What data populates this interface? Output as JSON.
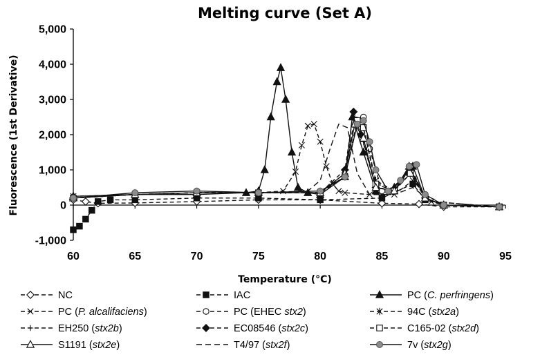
{
  "chart_data": {
    "type": "line",
    "title": "Melting curve (Set A)",
    "xlabel": "Temperature (°C)",
    "ylabel": "Fluorescence (1st Derivative)",
    "xlim": [
      60,
      95
    ],
    "ylim": [
      -1000,
      5000
    ],
    "xticks": [
      "60",
      "65",
      "70",
      "75",
      "80",
      "85",
      "90",
      "95"
    ],
    "yticks": [
      "-1,000",
      "0",
      "1,000",
      "2,000",
      "3,000",
      "4,000",
      "5,000"
    ],
    "grid": false,
    "legend_position": "bottom",
    "series": [
      {
        "name": "NC",
        "label": "NC",
        "marker": "diamond-open",
        "dash": "6 4",
        "x": [
          60,
          61,
          62,
          65,
          70,
          75,
          80,
          85,
          88,
          90,
          94.5
        ],
        "y": [
          150,
          100,
          50,
          60,
          100,
          150,
          150,
          50,
          30,
          -50,
          -50
        ]
      },
      {
        "name": "IAC",
        "label": "IAC",
        "marker": "square-filled",
        "dash": "6 4",
        "x": [
          60,
          60.5,
          61,
          61.5,
          62,
          63,
          65,
          70,
          75,
          80,
          85,
          87.5,
          88.5,
          90,
          94.5
        ],
        "y": [
          -700,
          -600,
          -400,
          -150,
          100,
          150,
          150,
          200,
          200,
          150,
          200,
          600,
          150,
          0,
          -50
        ]
      },
      {
        "name": "PC (C. perfringens)",
        "label": "PC (",
        "label_italic": "C. perfringens",
        "label_suffix": ")",
        "marker": "triangle-filled",
        "dash": "",
        "x": [
          60,
          65,
          70,
          74,
          75,
          75.5,
          76,
          76.5,
          76.8,
          77.2,
          77.7,
          78.2,
          79,
          80,
          82,
          82.6,
          83.5,
          84.5,
          86,
          87.5,
          88.5,
          90,
          94.5
        ],
        "y": [
          250,
          300,
          300,
          350,
          400,
          1000,
          2500,
          3500,
          3900,
          3000,
          1500,
          500,
          350,
          300,
          800,
          2500,
          1500,
          400,
          500,
          1100,
          200,
          0,
          -50
        ]
      },
      {
        "name": "PC (P. alcalifaciens)",
        "label": "PC (",
        "label_italic": "P. alcalifaciens",
        "label_suffix": ")",
        "marker": "x",
        "dash": "6 4",
        "x": [
          60,
          65,
          70,
          75,
          77,
          78,
          78.5,
          79,
          79.5,
          80,
          80.5,
          81,
          81.5,
          82,
          84,
          86,
          87.5,
          89,
          94.5
        ],
        "y": [
          250,
          300,
          350,
          350,
          400,
          950,
          1700,
          2250,
          2300,
          1800,
          1100,
          600,
          400,
          350,
          300,
          300,
          700,
          100,
          -50
        ]
      },
      {
        "name": "PC (EHEC stx2)",
        "label": "PC (EHEC ",
        "label_italic": "stx2",
        "label_suffix": ")",
        "marker": "circle-open",
        "dash": "6 4",
        "x": [
          60,
          65,
          70,
          75,
          80,
          82,
          83,
          83.5,
          84,
          85,
          86,
          87.3,
          88.5,
          90,
          94.5
        ],
        "y": [
          200,
          300,
          350,
          350,
          350,
          800,
          2400,
          2500,
          1600,
          400,
          400,
          1100,
          200,
          0,
          -50
        ]
      },
      {
        "name": "94C (stx2a)",
        "label": "94C (",
        "label_italic": "stx2a",
        "label_suffix": ")",
        "marker": "star",
        "dash": "6 4",
        "x": [
          60,
          65,
          70,
          75,
          80,
          82,
          83,
          83.5,
          84.5,
          86,
          87.3,
          88.5,
          90,
          94.5
        ],
        "y": [
          200,
          300,
          350,
          350,
          350,
          800,
          2300,
          2200,
          700,
          400,
          900,
          200,
          0,
          -50
        ]
      },
      {
        "name": "EH250 (stx2b)",
        "label": "EH250 (",
        "label_italic": "stx2b",
        "label_suffix": ")",
        "marker": "plus",
        "dash": "6 4",
        "x": [
          60,
          65,
          70,
          75,
          80,
          82,
          82.8,
          83.5,
          84.5,
          86,
          87.2,
          88.5,
          90,
          94.5
        ],
        "y": [
          200,
          300,
          350,
          350,
          350,
          900,
          2500,
          1800,
          500,
          400,
          1000,
          200,
          0,
          -50
        ]
      },
      {
        "name": "EC08546 (stx2c)",
        "label": "EC08546 (",
        "label_italic": "stx2c",
        "label_suffix": ")",
        "marker": "diamond-filled",
        "dash": "6 4",
        "x": [
          60,
          65,
          70,
          75,
          80,
          82,
          82.7,
          83.3,
          84.5,
          86,
          87.3,
          88.5,
          90,
          94.5
        ],
        "y": [
          200,
          300,
          350,
          350,
          350,
          1000,
          2650,
          2000,
          500,
          400,
          1000,
          200,
          0,
          -50
        ]
      },
      {
        "name": "C165-02 (stx2d)",
        "label": "C165-02 (",
        "label_italic": "stx2d",
        "label_suffix": ")",
        "marker": "square-open",
        "dash": "6 4",
        "x": [
          60,
          65,
          70,
          75,
          80,
          82,
          83,
          83.5,
          84.5,
          86,
          87.3,
          88.5,
          90,
          94.5
        ],
        "y": [
          200,
          300,
          350,
          350,
          350,
          800,
          2400,
          2200,
          600,
          400,
          900,
          200,
          0,
          -50
        ]
      },
      {
        "name": "S1191 (stx2e)",
        "label": "S1191 (",
        "label_italic": "stx2e",
        "label_suffix": ")",
        "marker": "triangle-open",
        "dash": "",
        "x": [
          60,
          65,
          70,
          75,
          80,
          82,
          82.8,
          83.5,
          84.5,
          86,
          87.2,
          88.5,
          90,
          94.5
        ],
        "y": [
          200,
          300,
          350,
          350,
          350,
          900,
          2300,
          1900,
          500,
          400,
          1100,
          200,
          0,
          -50
        ]
      },
      {
        "name": "T4/97 (stx2f)",
        "label": "T4/97 (",
        "label_italic": "stx2f",
        "label_suffix": ")",
        "marker": "none",
        "dash": "8 5",
        "x": [
          60,
          65,
          70,
          75,
          79,
          80,
          80.8,
          81.5,
          82.2,
          83,
          84,
          86,
          87.5,
          89,
          94.5
        ],
        "y": [
          200,
          300,
          350,
          350,
          400,
          700,
          1600,
          2300,
          2200,
          900,
          300,
          300,
          500,
          100,
          -50
        ]
      },
      {
        "name": "7v (stx2g)",
        "label": "7v (",
        "label_italic": "stx2g",
        "label_suffix": ")",
        "marker": "circle-filled",
        "dash": "",
        "x": [
          60,
          65,
          70,
          75,
          80,
          82,
          83,
          83.5,
          84,
          84.5,
          85.5,
          86.5,
          87.2,
          87.8,
          88.5,
          90,
          94.5
        ],
        "y": [
          200,
          350,
          400,
          350,
          400,
          800,
          2300,
          2400,
          1800,
          1000,
          400,
          700,
          1100,
          1150,
          300,
          0,
          -50
        ]
      }
    ]
  }
}
